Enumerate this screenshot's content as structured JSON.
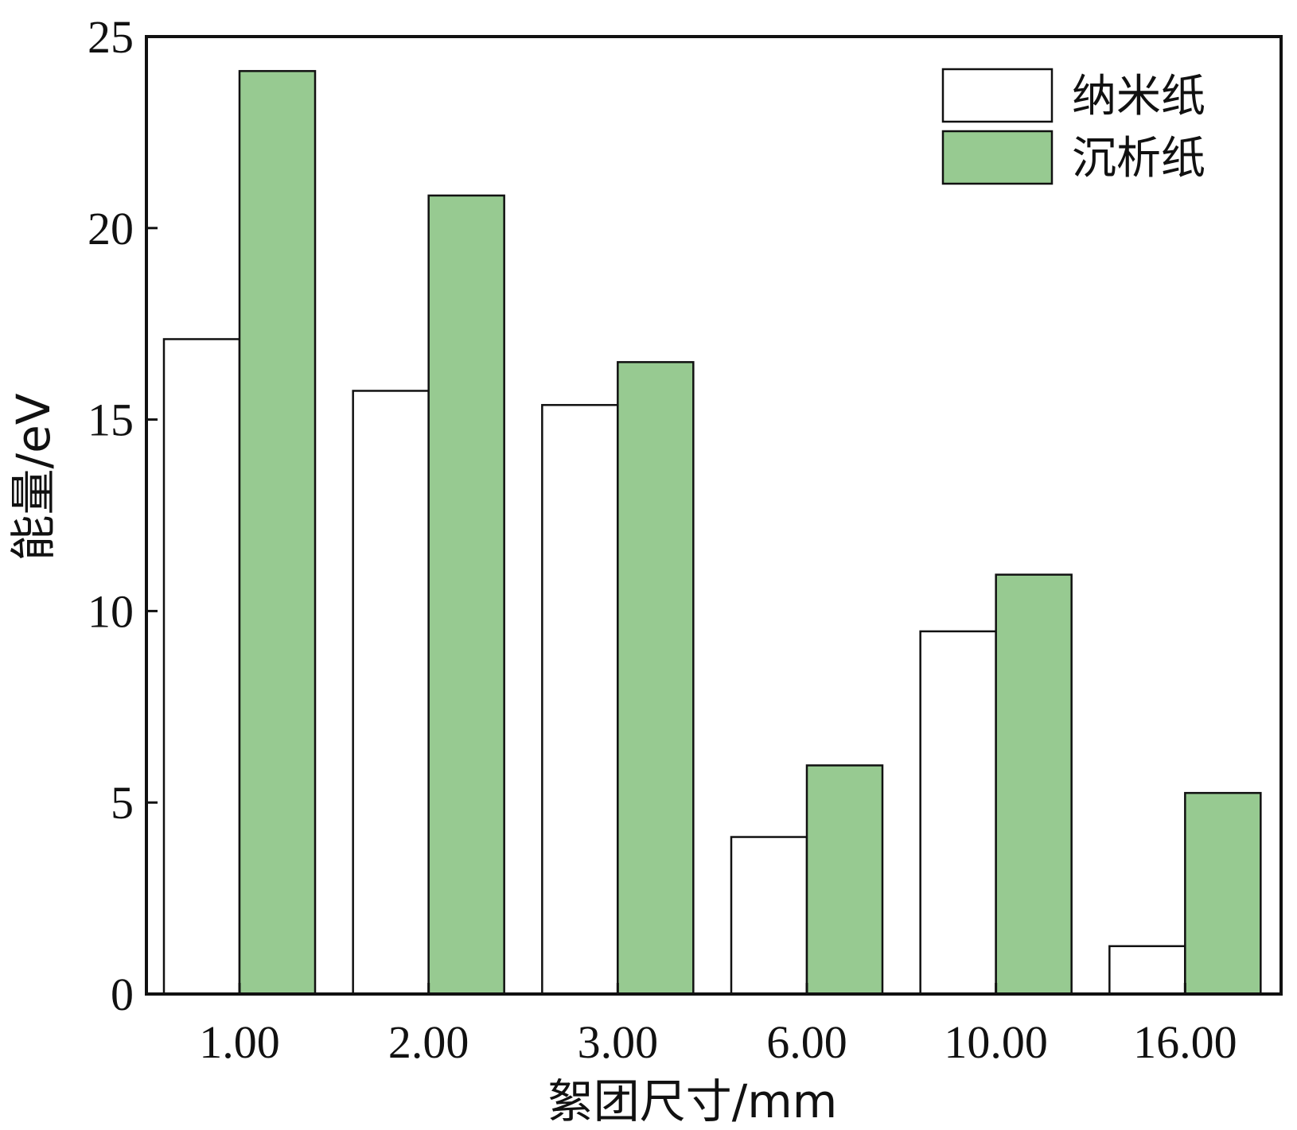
{
  "chart_data": {
    "type": "bar",
    "categories": [
      "1.00",
      "2.00",
      "3.00",
      "6.00",
      "10.00",
      "16.00"
    ],
    "series": [
      {
        "name": "纳米纸",
        "values": [
          17.1,
          15.75,
          15.38,
          4.1,
          9.47,
          1.25
        ],
        "color": "#ffffff"
      },
      {
        "name": "沉析纸",
        "values": [
          24.1,
          20.85,
          16.5,
          5.97,
          10.95,
          5.25
        ],
        "color": "#97ca91"
      }
    ],
    "xlabel": "絮团尺寸/mm",
    "ylabel": "能量/eV",
    "ylim": [
      0,
      25
    ],
    "yticks": [
      "0",
      "5",
      "10",
      "15",
      "20",
      "25"
    ],
    "grid": false,
    "legend_position": "top-right"
  }
}
